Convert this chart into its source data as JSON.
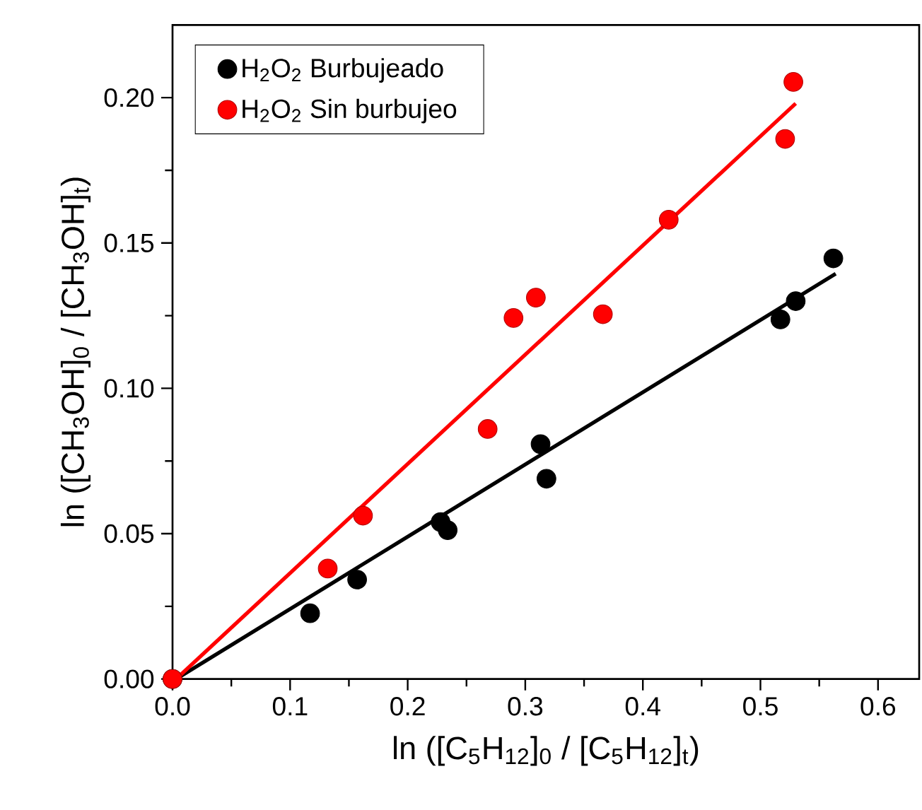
{
  "chart_data": {
    "type": "scatter",
    "xlabel": "ln ([C$_{5}$H$_{12}$]$_{0}$ / [C$_{5}$H$_{12}$]$_{t}$)",
    "ylabel": "ln ([CH$_{3}$OH]$_{0}$ / [CH$_{3}$OH]$_{t}$)",
    "xlim": [
      0,
      0.635
    ],
    "ylim": [
      0,
      0.225
    ],
    "xticks": [
      {
        "value": 0,
        "label": "0.0"
      },
      {
        "value": 0.05,
        "label": null
      },
      0.1,
      {
        "value": 0.15,
        "label": null
      },
      0.2,
      {
        "value": 0.25,
        "label": null
      },
      0.3,
      {
        "value": 0.35,
        "label": null
      },
      0.4,
      {
        "value": 0.45,
        "label": null
      },
      0.5,
      {
        "value": 0.55,
        "label": null
      },
      0.6
    ],
    "yticks": [
      {
        "value": 0,
        "label": "0.00"
      },
      {
        "value": 0.025,
        "label": null
      },
      0.05,
      {
        "value": 0.075,
        "label": null
      },
      {
        "value": 0.1,
        "label": "0.10"
      },
      {
        "value": 0.125,
        "label": null
      },
      0.15,
      {
        "value": 0.175,
        "label": null
      },
      {
        "value": 0.2,
        "label": "0.20"
      }
    ],
    "legend": "top left",
    "grid": false,
    "series": [
      {
        "name": "H$_{2}$O$_{2}$ Burbujeado",
        "color": "#000000",
        "marker": "circle",
        "x": [
          0,
          0.117,
          0.157,
          0.228,
          0.234,
          0.313,
          0.318,
          0.517,
          0.53,
          0.562
        ],
        "values": [
          0,
          0.0226,
          0.0342,
          0.054,
          0.0512,
          0.0808,
          0.0689,
          0.1237,
          0.13,
          0.1447
        ]
      },
      {
        "name": "H$_{2}$O$_{2}$ Sin burbujeo",
        "color": "#ff0000",
        "marker": "circle",
        "x": [
          0,
          0.132,
          0.162,
          0.268,
          0.29,
          0.309,
          0.366,
          0.422,
          0.521,
          0.528
        ],
        "values": [
          0,
          0.038,
          0.0562,
          0.086,
          0.1242,
          0.1312,
          0.1255,
          0.158,
          0.1858,
          0.2054
        ]
      },
      {
        "type": "line",
        "color": "#000000",
        "marker": "none",
        "x": [
          0.003,
          0.564
        ],
        "values": [
          0,
          0.1394
        ]
      },
      {
        "type": "line",
        "color": "#ff0000",
        "marker": "none",
        "x": [
          0.003,
          0.53
        ],
        "values": [
          0,
          0.198
        ]
      }
    ]
  }
}
